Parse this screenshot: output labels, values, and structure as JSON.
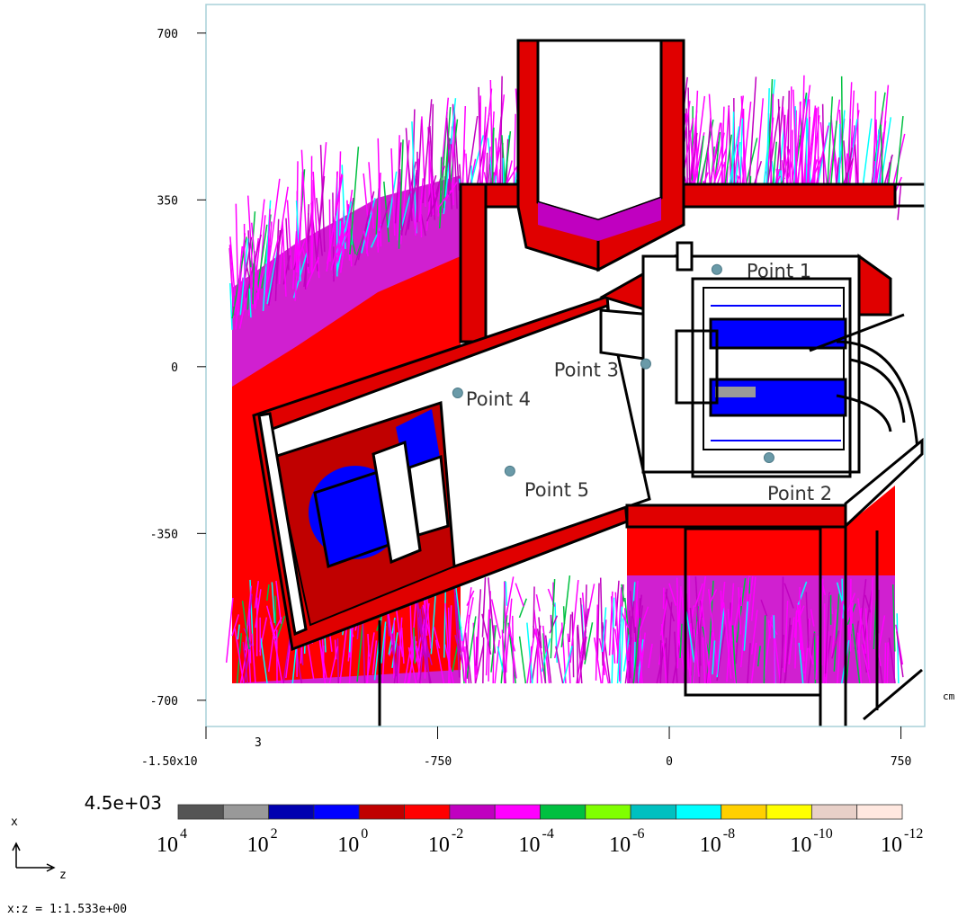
{
  "chart_data": {
    "type": "scatter",
    "xlim": [
      -1500,
      827
    ],
    "ylim": [
      -755,
      760
    ],
    "xticks": [
      {
        "value": -1500,
        "label": "-1.50x10",
        "label_exponent": "3"
      },
      -750,
      0,
      750
    ],
    "yticks": [
      700,
      350,
      0,
      -350,
      -700
    ],
    "x_unit": "cm",
    "points": [
      {
        "label": "Point 1",
        "z": 154,
        "x": 204
      },
      {
        "label": "Point 2",
        "z": 323,
        "x": -191
      },
      {
        "label": "Point 3",
        "z": -76,
        "x": 6
      },
      {
        "label": "Point 4",
        "z": -685,
        "x": -55
      },
      {
        "label": "Point 5",
        "z": -516,
        "x": -219
      }
    ],
    "point_color": "#6a9aa8",
    "colorbar": {
      "max_label": "4.5e+03",
      "colors": [
        "#555555",
        "#999999",
        "#0000b0",
        "#0000ff",
        "#c00000",
        "#ff0000",
        "#c000c0",
        "#ff00ff",
        "#00c040",
        "#80ff00",
        "#00c0c0",
        "#00ffff",
        "#ffd000",
        "#ffff00",
        "#e8d0c8",
        "#ffe8e0"
      ],
      "ticks": [
        {
          "base": "10",
          "exponent": "4"
        },
        {
          "base": "10",
          "exponent": "2"
        },
        {
          "base": "10",
          "exponent": "0"
        },
        {
          "base": "10",
          "exponent": "-2"
        },
        {
          "base": "10",
          "exponent": "-4"
        },
        {
          "base": "10",
          "exponent": "-6"
        },
        {
          "base": "10",
          "exponent": "-8"
        },
        {
          "base": "10",
          "exponent": "-10"
        },
        {
          "base": "10",
          "exponent": "-12"
        }
      ]
    },
    "vertical_axis_label": "x",
    "horizontal_axis_label": "z",
    "aspect_label": "x:z = 1:1.533e+00"
  }
}
